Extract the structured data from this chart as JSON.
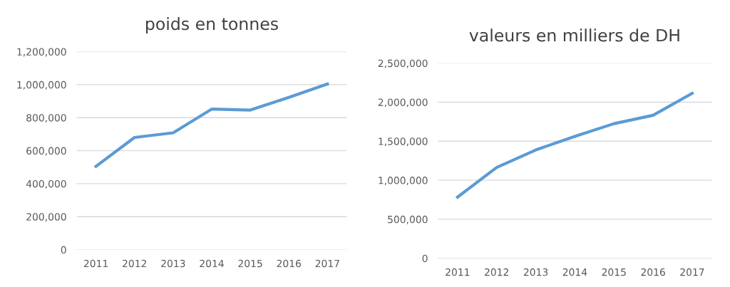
{
  "chart_data": [
    {
      "type": "line",
      "title": "poids en tonnes",
      "categories": [
        "2011",
        "2012",
        "2013",
        "2014",
        "2015",
        "2016",
        "2017"
      ],
      "series": [
        {
          "color": "#5b9bd5",
          "values": [
            505000,
            680000,
            708000,
            852000,
            846000,
            923000,
            1004000
          ]
        }
      ],
      "ylim": [
        0,
        1200000
      ],
      "yticks": [
        0,
        {
          "value": 200000,
          "label": "200,000"
        },
        {
          "value": 400000,
          "label": "400,000"
        },
        {
          "value": 600000,
          "label": "600,000"
        },
        {
          "value": 800000,
          "label": "800,000"
        },
        {
          "value": 1000000,
          "label": "1,000,000"
        },
        {
          "value": 1200000,
          "label": "1,200,000"
        }
      ],
      "grid": "y",
      "legend": false,
      "marker": "none",
      "line_style": "solid"
    },
    {
      "type": "line",
      "title": "valeurs en milliers de DH",
      "categories": [
        "2011",
        "2012",
        "2013",
        "2014",
        "2015",
        "2016",
        "2017"
      ],
      "series": [
        {
          "color": "#5b9bd5",
          "values": [
            784000,
            1164000,
            1388000,
            1562000,
            1725000,
            1832000,
            2114000
          ]
        }
      ],
      "ylim": [
        0,
        2500000
      ],
      "yticks": [
        0,
        {
          "value": 500000,
          "label": "500,000"
        },
        {
          "value": 1000000,
          "label": "1,000,000"
        },
        {
          "value": 1500000,
          "label": "1,500,000"
        },
        {
          "value": 2000000,
          "label": "2,000,000"
        },
        {
          "value": 2500000,
          "label": "2,500,000"
        }
      ],
      "grid": "y",
      "legend": false,
      "marker": "none",
      "line_style": "solid"
    }
  ]
}
